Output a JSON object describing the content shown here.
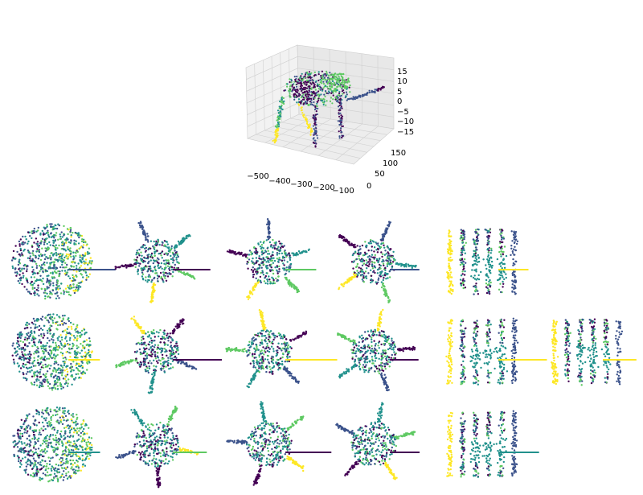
{
  "figure": {
    "colormap": [
      "#440154",
      "#3b528b",
      "#21918c",
      "#5ec962",
      "#fde725"
    ]
  },
  "chart_data": [
    {
      "type": "scatter",
      "projection": "3d",
      "subject": "elephant point cloud",
      "xticks": [
        "−500",
        "−400",
        "−300",
        "−200",
        "−100"
      ],
      "yticks": [
        "0",
        "50",
        "100",
        "150"
      ],
      "zticks": [
        "15",
        "10",
        "5",
        "0",
        "−5",
        "−10",
        "−15"
      ],
      "grid": true
    },
    {
      "type": "scatter",
      "description": "grid of 2D embeddings of the 3D point cloud",
      "rows": 3,
      "panels_per_row": [
        5,
        6,
        5
      ],
      "axes": false,
      "color_by": "viridis cluster labels"
    }
  ]
}
